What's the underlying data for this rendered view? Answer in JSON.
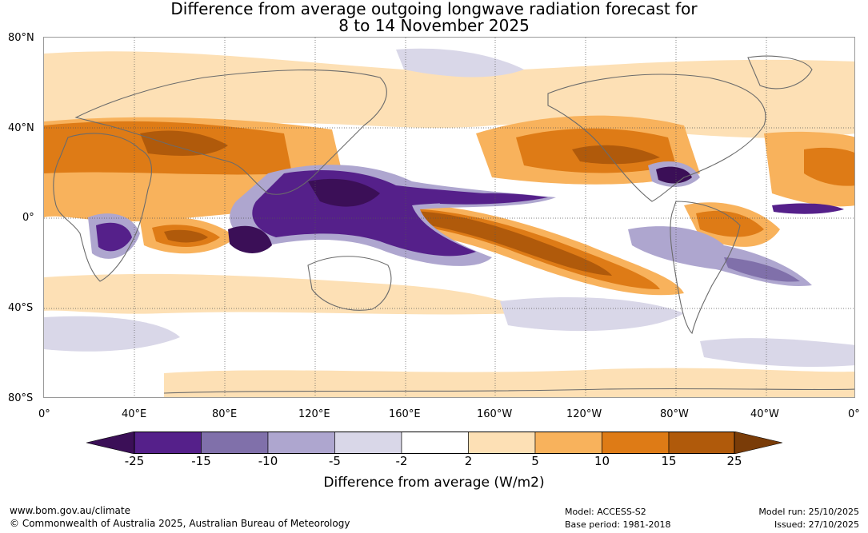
{
  "title_line1": "Difference from average outgoing longwave radiation forecast for",
  "title_line2": "8 to 14 November 2025",
  "lat_labels": [
    "80°N",
    "40°N",
    "0°",
    "40°S",
    "80°S"
  ],
  "lon_labels": [
    "0°",
    "40°E",
    "80°E",
    "120°E",
    "160°E",
    "160°W",
    "120°W",
    "80°W",
    "40°W",
    "0°"
  ],
  "legend": {
    "title": "Difference from average (W/m2)",
    "ticks": [
      "-25",
      "-15",
      "-10",
      "-5",
      "-2",
      "2",
      "5",
      "10",
      "15",
      "25"
    ],
    "colors": [
      "#3b0f57",
      "#55208a",
      "#8070aa",
      "#aea6cf",
      "#d9d7e8",
      "#ffffff",
      "#fde0b5",
      "#f8b25c",
      "#de7b16",
      "#b05a0b",
      "#7a3c08"
    ]
  },
  "footer": {
    "website": "www.bom.gov.au/climate",
    "copyright": "© Commonwealth of Australia 2025, Australian Bureau of Meteorology",
    "model": "Model: ACCESS-S2",
    "base_period": "Base period: 1981-2018",
    "model_run": "Model run: 25/10/2025",
    "issued": "Issued: 27/10/2025"
  }
}
